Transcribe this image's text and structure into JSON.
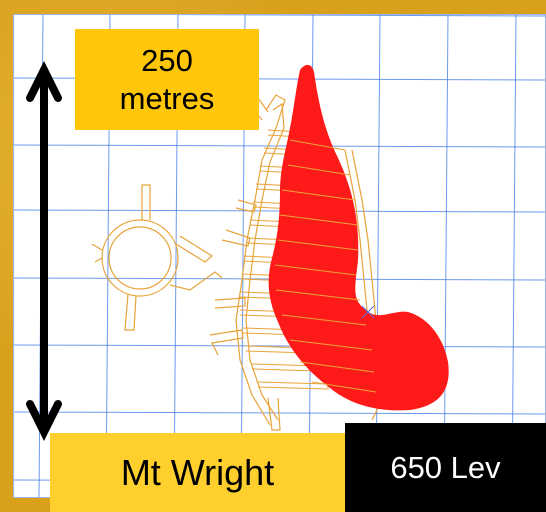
{
  "scale_label": {
    "line1": "250",
    "line2": "metres"
  },
  "site_label": "Mt Wright",
  "level_label": "650 Lev",
  "colors": {
    "frame": "#d9a01c",
    "grid": "#3c78e6",
    "development": "#e8a33a",
    "orebody": "#ff1a1a",
    "label_fill": "#ffc60a",
    "level_fill": "#000000"
  },
  "icons": {
    "scale_arrow": "double-headed-vertical-arrow"
  }
}
